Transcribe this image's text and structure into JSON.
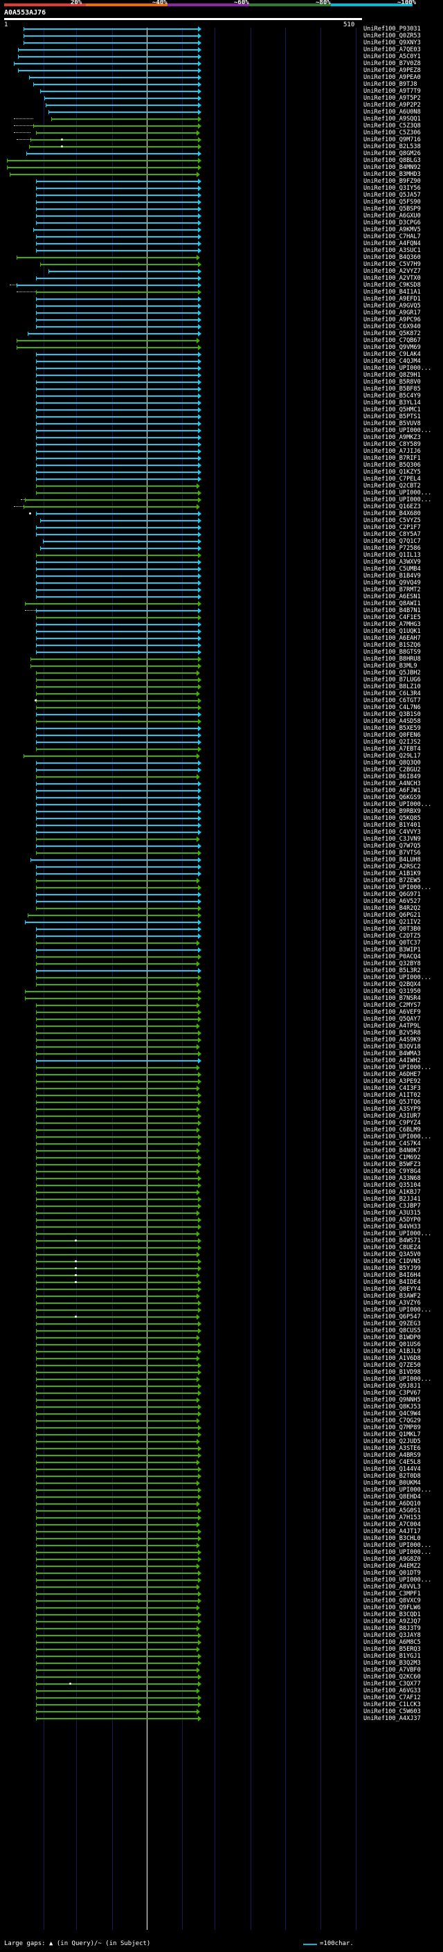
{
  "scale": {
    "labels": [
      "20%",
      "~40%",
      "~60%",
      "~80%",
      "~100%"
    ],
    "colors": [
      "#e53935",
      "#ef6c00",
      "#8e24aa",
      "#2e7d32",
      "#00bcd4"
    ]
  },
  "query": {
    "id": "A0A553AJ76",
    "start": "1",
    "end": "510"
  },
  "colors": {
    "full": "#1ec8f0",
    "partial": "#40b000",
    "gap": "#cccccc",
    "guide": "#ffffff"
  },
  "hits": [
    "UniRef100_P93031",
    "UniRef100_Q0ZR53",
    "UniRef100_Q9XNY3",
    "UniRef100_A7QE03",
    "UniRef100_A5C0Y1",
    "UniRef100_B7V0Z8",
    "UniRef100_A9PEZ8",
    "UniRef100_A9PEA0",
    "UniRef100_B9TJ8",
    "UniRef100_A9T7T9",
    "UniRef100_A9T5P2",
    "UniRef100_A9P2P2",
    "UniRef100_A6U0N8",
    "UniRef100_A9SQQ1",
    "UniRef100_C5Z3Q8",
    "UniRef100_C5Z306",
    "UniRef100_Q9M716",
    "UniRef100_B2L538",
    "UniRef100_Q8GM26",
    "UniRef100_Q8BLG3",
    "UniRef100_B4MN92",
    "UniRef100_B3MHD3",
    "UniRef100_B9FZ90",
    "UniRef100_Q3IY56",
    "UniRef100_Q5JA57",
    "UniRef100_Q5FS90",
    "UniRef100_Q5BSP9",
    "UniRef100_A6GXU0",
    "UniRef100_D3CPG6",
    "UniRef100_A9KMV5",
    "UniRef100_C7HAL7",
    "UniRef100_A4FQN4",
    "UniRef100_A3SUC1",
    "UniRef100_B4Q360",
    "UniRef100_C5V7H9",
    "UniRef100_A2VYZ7",
    "UniRef100_A2VTX0",
    "UniRef100_C9KSD8",
    "UniRef100_B4I1A1",
    "UniRef100_A9EFD1",
    "UniRef100_A9GVQ5",
    "UniRef100_A9GR17",
    "UniRef100_A9PC96",
    "UniRef100_C6X940",
    "UniRef100_Q5K872",
    "UniRef100_C7QB67",
    "UniRef100_Q9VM69",
    "UniRef100_C9LAK4",
    "UniRef100_C4QJM4",
    "UniRef100_UPI000...",
    "UniRef100_Q8Z9H1",
    "UniRef100_B5R8V0",
    "UniRef100_B5BF85",
    "UniRef100_B5C4Y9",
    "UniRef100_B3YL14",
    "UniRef100_Q5HMC1",
    "UniRef100_B5PTS1",
    "UniRef100_B5VUV8",
    "UniRef100_UPI000...",
    "UniRef100_A9MKZ3",
    "UniRef100_C8Y589",
    "UniRef100_A7JIJ6",
    "UniRef100_B7RIF1",
    "UniRef100_B5Q306",
    "UniRef100_Q1KZY5",
    "UniRef100_C7PEL4",
    "UniRef100_Q2CBT2",
    "UniRef100_UPI000...",
    "UniRef100_UPI000...",
    "UniRef100_Q16EZ3",
    "UniRef100_B4X680",
    "UniRef100_C5VYZ5",
    "UniRef100_C2P1F7",
    "UniRef100_C8Y5A7",
    "UniRef100_Q7Q1C7",
    "UniRef100_P72586",
    "UniRef100_Q1IL13",
    "UniRef100_A3WXV9",
    "UniRef100_C5UMB4",
    "UniRef100_B1B4V9",
    "UniRef100_Q9VQ49",
    "UniRef100_B7RMT2",
    "UniRef100_A6ESN1",
    "UniRef100_Q8AWI1",
    "UniRef100_B4B7N1",
    "UniRef100_C4F1E5",
    "UniRef100_A7MHG3",
    "UniRef100_Q1UQK1",
    "UniRef100_A6EAH7",
    "UniRef100_B1SZQ6",
    "UniRef100_B8GTS9",
    "UniRef100_B8HRU8",
    "UniRef100_B3ML9",
    "UniRef100_Q5JBH2",
    "UniRef100_B7LUG6",
    "UniRef100_B8LZ10",
    "UniRef100_C6L3R4",
    "UniRef100_C6TGT7",
    "UniRef100_C4L7N6",
    "UniRef100_Q3B1S0",
    "UniRef100_A4SD58",
    "UniRef100_B5XE59",
    "UniRef100_Q0FEN6",
    "UniRef100_Q2IJS2",
    "UniRef100_A7EBT4",
    "UniRef100_Q29L17",
    "UniRef100_Q8Q3Q0",
    "UniRef100_C2BGU2",
    "UniRef100_B6I849",
    "UniRef100_A4NCH3",
    "UniRef100_A6FJW1",
    "UniRef100_Q6KGS9",
    "UniRef100_UPI000...",
    "UniRef100_B9RBX9",
    "UniRef100_Q5KQ85",
    "UniRef100_B1Y401",
    "UniRef100_C4VVY3",
    "UniRef100_C3JVN9",
    "UniRef100_Q7W7Q5",
    "UniRef100_B7VTS6",
    "UniRef100_B4LUH8",
    "UniRef100_A2RSC2",
    "UniRef100_A1B1K9",
    "UniRef100_B7ZEW5",
    "UniRef100_UPI000...",
    "UniRef100_Q6G971",
    "UniRef100_A6V527",
    "UniRef100_B4R2Q2",
    "UniRef100_Q6PG21",
    "UniRef100_Q21IV2",
    "UniRef100_Q0T3B0",
    "UniRef100_C2DTZ5",
    "UniRef100_Q0TC37",
    "UniRef100_B3WIP1",
    "UniRef100_P0ACQ4",
    "UniRef100_Q32BY8",
    "UniRef100_B5L3R2",
    "UniRef100_UPI000...",
    "UniRef100_Q2BQX4",
    "UniRef100_Q31950",
    "UniRef100_B7NSR4",
    "UniRef100_C2MYS7",
    "UniRef100_A6VEF9",
    "UniRef100_Q5QAY7",
    "UniRef100_A4TP9L",
    "UniRef100_B2V5R8",
    "UniRef100_A4S9K9",
    "UniRef100_B3QV18",
    "UniRef100_B4WMA3",
    "UniRef100_A4IWH2",
    "UniRef100_UPI000...",
    "UniRef100_A6DHE7",
    "UniRef100_A3PE92",
    "UniRef100_C4I3F3",
    "UniRef100_A1IT02",
    "UniRef100_Q5JTQ6",
    "UniRef100_A3SYP9",
    "UniRef100_A3IUR7",
    "UniRef100_C9PYZ4",
    "UniRef100_C6BLM9",
    "UniRef100_UPI000...",
    "UniRef100_C4S7K4",
    "UniRef100_B4N0K7",
    "UniRef100_C1M692",
    "UniRef100_B5WFZ3",
    "UniRef100_C9Y8G4",
    "UniRef100_A33N68",
    "UniRef100_Q35104",
    "UniRef100_A1KBJ7",
    "UniRef100_B2JJ41",
    "UniRef100_C3JBP7",
    "UniRef100_A3U315",
    "UniRef100_A5DYP0",
    "UniRef100_B4VH33",
    "UniRef100_UPI000...",
    "UniRef100_B4WS71",
    "UniRef100_C8UEZ4",
    "UniRef100_Q3A5V0",
    "UniRef100_C1DVN5",
    "UniRef100_B5YJ99",
    "UniRef100_B4I6H4",
    "UniRef100_B4IDE4",
    "UniRef100_Q0EYY4",
    "UniRef100_B3AWF2",
    "UniRef100_A3VZY6",
    "UniRef100_UPI000...",
    "UniRef100_Q6P547",
    "UniRef100_Q9ZEG3",
    "UniRef100_Q8CUS5",
    "UniRef100_B1WDP0",
    "UniRef100_Q01US6",
    "UniRef100_A1BJL9",
    "UniRef100_A1V6D8",
    "UniRef100_Q7ZE50",
    "UniRef100_B1VD98",
    "UniRef100_UPI000...",
    "UniRef100_Q9J8J1",
    "UniRef100_C3PV67",
    "UniRef100_Q9NNH5",
    "UniRef100_Q8KJ53",
    "UniRef100_Q4C9W4",
    "UniRef100_C7QG29",
    "UniRef100_Q7MP89",
    "UniRef100_Q1MKL7",
    "UniRef100_Q2JUD5",
    "UniRef100_A3STE6",
    "UniRef100_A4BRS9",
    "UniRef100_C4E5L8",
    "UniRef100_Q144V4",
    "UniRef100_B2T0D8",
    "UniRef100_B0UKM4",
    "UniRef100_UPI000...",
    "UniRef100_Q8EHD4",
    "UniRef100_A6DQ10",
    "UniRef100_A5G0S1",
    "UniRef100_A7H153",
    "UniRef100_A7C004",
    "UniRef100_A4JT17",
    "UniRef100_B3CHL0",
    "UniRef100_UPI000...",
    "UniRef100_UPI000...",
    "UniRef100_A9G8Z0",
    "UniRef100_A4EMZ2",
    "UniRef100_Q01DT9",
    "UniRef100_UPI000...",
    "UniRef100_A8VVL3",
    "UniRef100_C3MPF1",
    "UniRef100_Q8VXC9",
    "UniRef100_Q9FLW6",
    "UniRef100_B3CQD1",
    "UniRef100_A9ZJQ7",
    "UniRef100_B8J3T9",
    "UniRef100_Q3JAY8",
    "UniRef100_A6M8C5",
    "UniRef100_B5ERQ3",
    "UniRef100_B1YGJ1",
    "UniRef100_B3Q2M3",
    "UniRef100_A7VBF0",
    "UniRef100_Q2KC60",
    "UniRef100_C3QX77",
    "UniRef100_A6VG33",
    "UniRef100_C7AF12",
    "UniRef100_C1LCK3",
    "UniRef100_C5W603",
    "UniRef100_A4XJ37"
  ],
  "footer": {
    "text": "Large gaps: ▲ (in Query)/~ (in Subject)",
    "legend": "=100char."
  }
}
